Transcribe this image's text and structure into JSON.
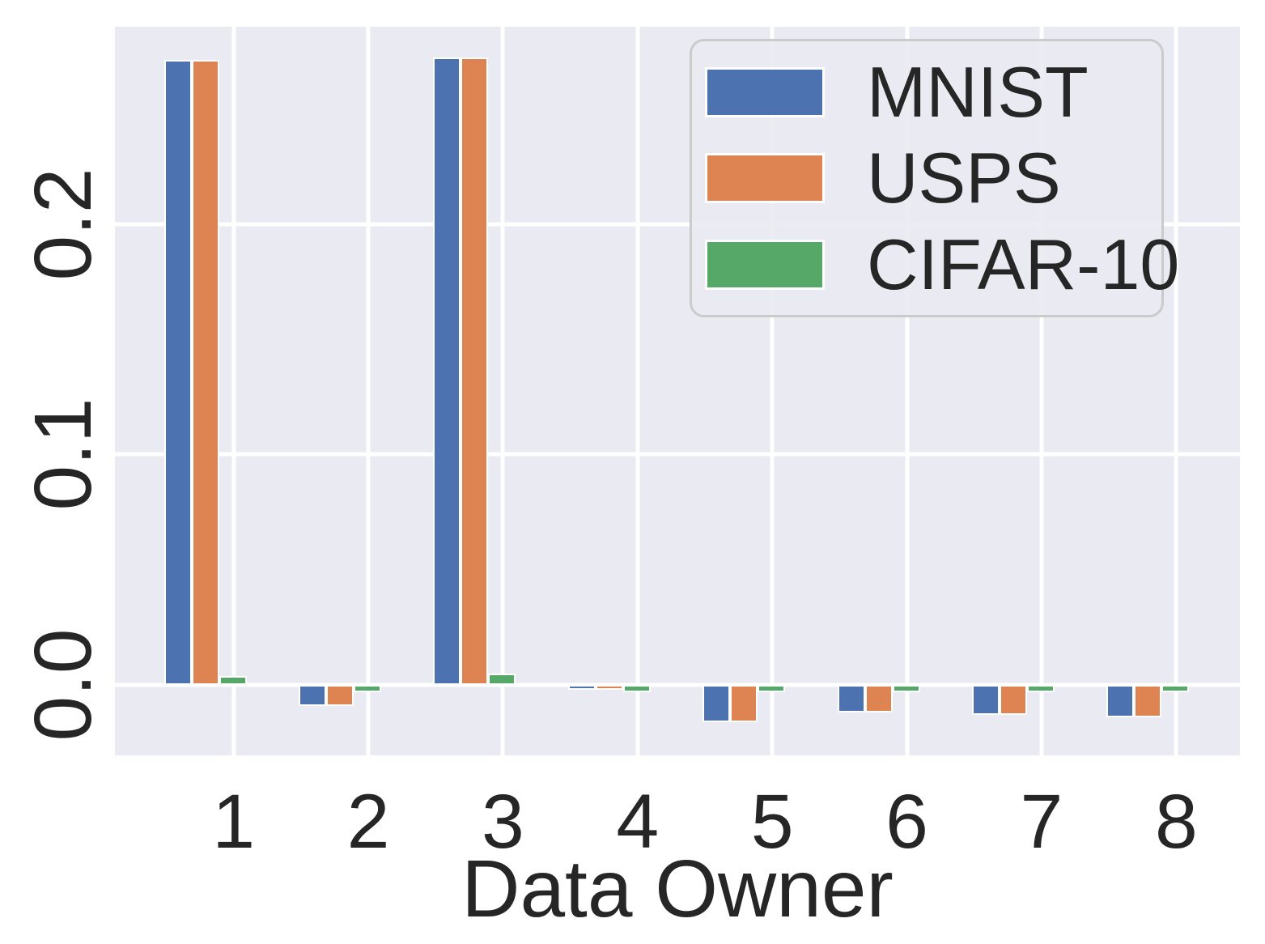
{
  "chart_data": {
    "type": "bar",
    "title": "",
    "xlabel": "Data Owner",
    "ylabel": "",
    "categories": [
      "1",
      "2",
      "3",
      "4",
      "5",
      "6",
      "7",
      "8"
    ],
    "series": [
      {
        "name": "MNIST",
        "color": "#4C72B0",
        "values": [
          0.271,
          -0.009,
          0.272,
          -0.002,
          -0.016,
          -0.012,
          -0.013,
          -0.014
        ]
      },
      {
        "name": "USPS",
        "color": "#DD8452",
        "values": [
          0.271,
          -0.009,
          0.272,
          -0.002,
          -0.016,
          -0.012,
          -0.013,
          -0.014
        ]
      },
      {
        "name": "CIFAR-10",
        "color": "#55A868",
        "values": [
          0.004,
          -0.003,
          0.005,
          -0.003,
          -0.003,
          -0.003,
          -0.003,
          -0.003
        ]
      }
    ],
    "yticks": [
      0.0,
      0.1,
      0.2
    ],
    "ytick_labels": [
      "0.0",
      "0.1",
      "0.2"
    ],
    "ylim": [
      -0.0305,
      0.2855
    ],
    "grid": true,
    "legend_position": "upper right"
  },
  "style": {
    "plot_bg": "#EAEAF2",
    "grid_color": "#FFFFFF",
    "text_color": "#262626",
    "legend_border": "#CBCBCB",
    "legend_bg": "rgba(234,234,242,0.9)"
  }
}
